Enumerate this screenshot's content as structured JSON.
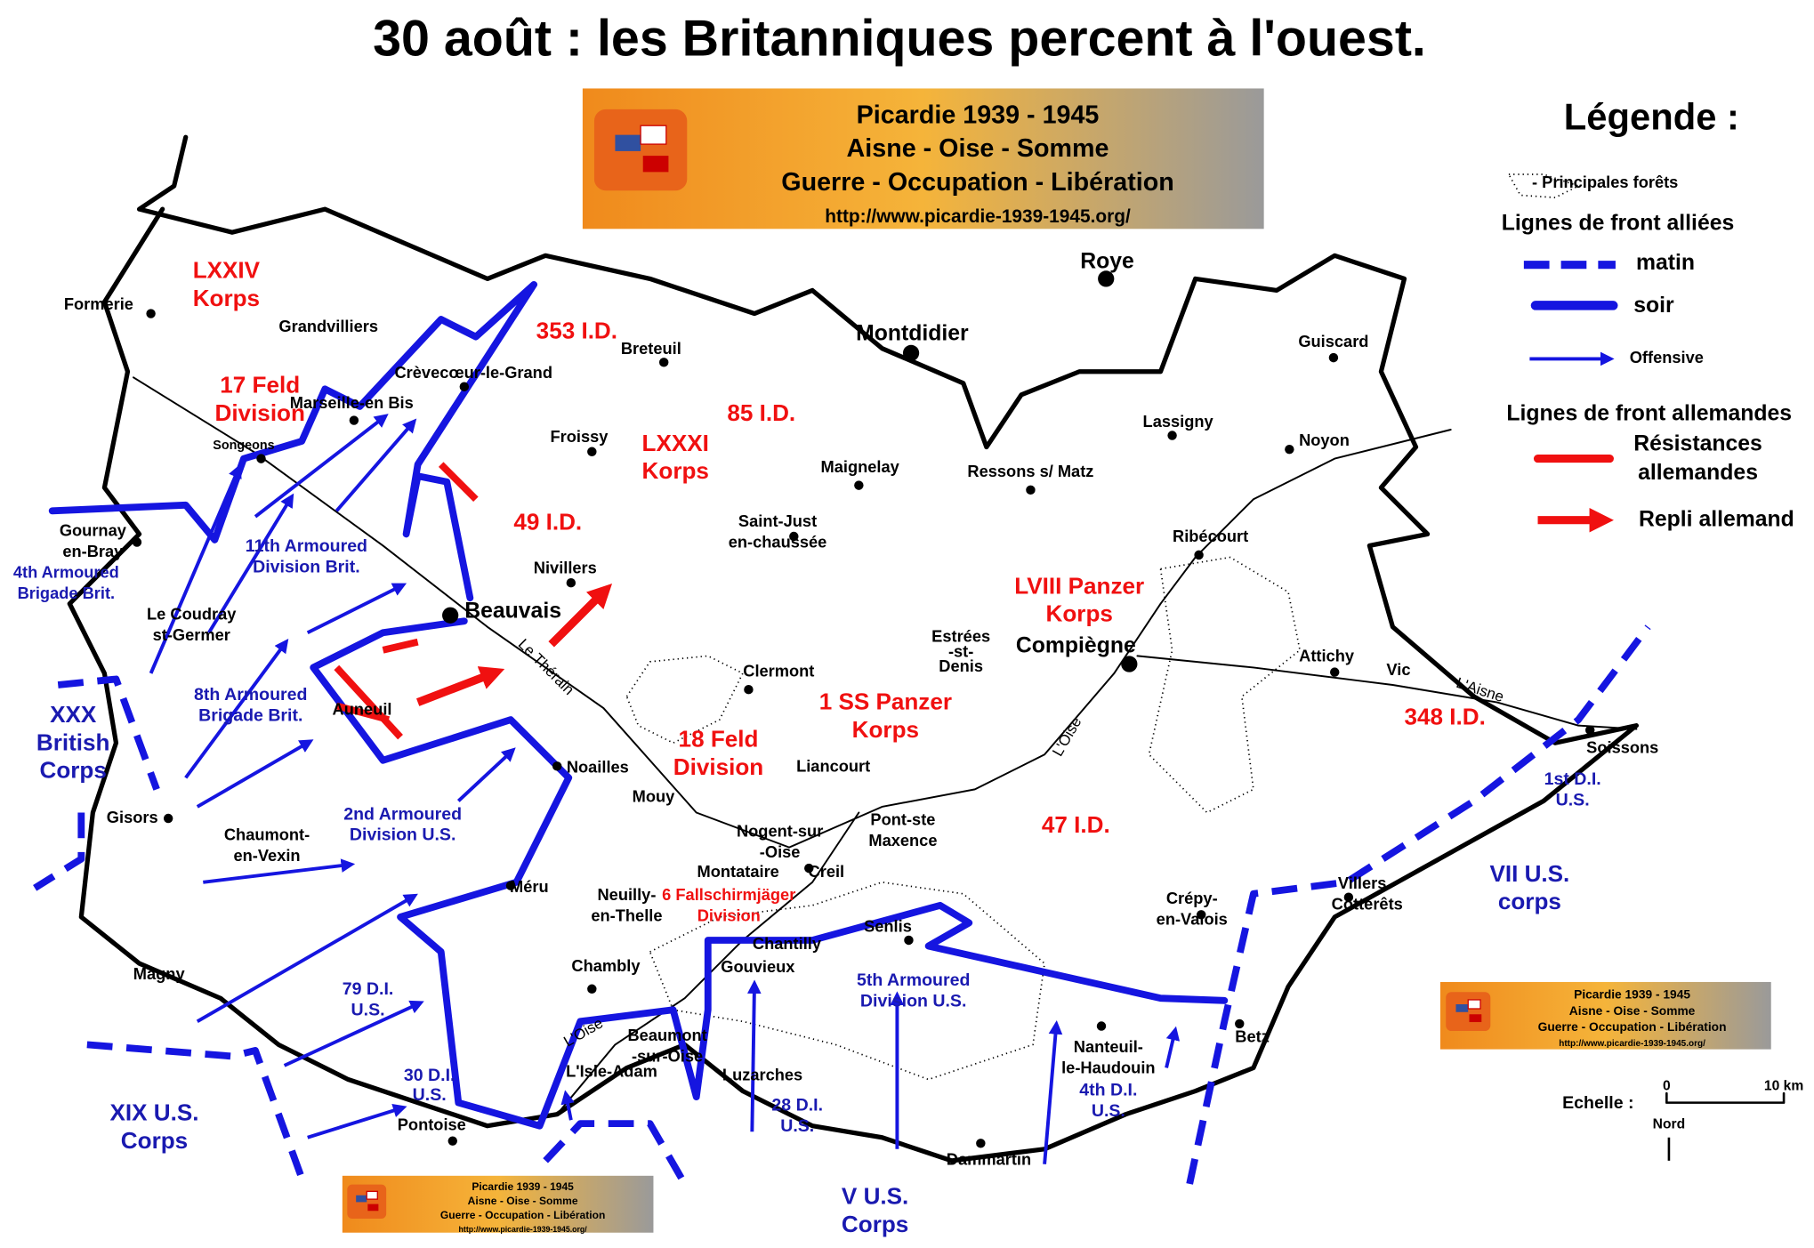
{
  "title": "30 août : les Britanniques percent à l'ouest.",
  "banner": [
    "Picardie  1939  -  1945",
    "Aisne  -  Oise  -  Somme",
    "Guerre  -  Occupation  -  Libération",
    "http://www.picardie-1939-1945.org/"
  ],
  "legend": {
    "title": "Légende :",
    "forests": "- Principales forêts",
    "allied_lines": "Lignes de front alliées",
    "morning": "matin",
    "evening": "soir",
    "offensive": "Offensive",
    "german_lines": "Lignes de front allemandes",
    "resistance": [
      "Résistances",
      "allemandes"
    ],
    "retreat": "Repli allemand"
  },
  "places": [
    [
      "Formerie"
    ],
    [
      "Grandvilliers"
    ],
    [
      "Crèvecœur-le-Grand"
    ],
    [
      "Marseille-en Bis"
    ],
    [
      "Songeons"
    ],
    [
      "Gournay",
      "en-Bray"
    ],
    [
      "Le Coudray",
      "st-Germer"
    ],
    [
      "Beauvais"
    ],
    [
      "Auneuil"
    ],
    [
      "Gisors"
    ],
    [
      "Chaumont-",
      "en-Vexin"
    ],
    [
      "Magny"
    ],
    [
      "Noailles"
    ],
    [
      "Méru"
    ],
    [
      "Chambly"
    ],
    [
      "Pontoise"
    ],
    [
      "L'Isle-Adam"
    ],
    [
      "Beaumont",
      "-sur-Oise"
    ],
    [
      "Luzarches"
    ],
    [
      "Neuilly-",
      "en-Thelle"
    ],
    [
      "Montataire"
    ],
    [
      "Nogent-sur",
      "-Oise"
    ],
    [
      "Creil"
    ],
    [
      "Chantilly"
    ],
    [
      "Gouvieux"
    ],
    [
      "Senlis"
    ],
    [
      "Pont-ste",
      "Maxence"
    ],
    [
      "Mouy"
    ],
    [
      "Liancourt"
    ],
    [
      "Clermont"
    ],
    [
      "Saint-Just",
      "en-chaussée"
    ],
    [
      "Nivillers"
    ],
    [
      "Froissy"
    ],
    [
      "Breteuil"
    ],
    [
      "Maignelay"
    ],
    [
      "Montdidier"
    ],
    [
      "Roye"
    ],
    [
      "Ressons s/ Matz"
    ],
    [
      "Lassigny"
    ],
    [
      "Guiscard"
    ],
    [
      "Noyon"
    ],
    [
      "Ribécourt"
    ],
    [
      "Compiègne"
    ],
    [
      "Estrées",
      "-st-",
      "Denis"
    ],
    [
      "Attichy"
    ],
    [
      "Vic"
    ],
    [
      "Soissons"
    ],
    [
      "Villers -",
      "Cotterêts"
    ],
    [
      "Crépy-",
      "en-Valois"
    ],
    [
      "Nanteuil-",
      "le-Haudouin"
    ],
    [
      "Betz"
    ],
    [
      "Dammartin"
    ]
  ],
  "rivers": [
    "Le Thérain",
    "L'Oise",
    "L'Aisne",
    "L'Oise"
  ],
  "german_units": [
    [
      "LXXIV",
      "Korps"
    ],
    [
      "353 I.D."
    ],
    [
      "17 Feld",
      "Division"
    ],
    [
      "85 I.D."
    ],
    [
      "LXXXI",
      "Korps"
    ],
    [
      "49 I.D."
    ],
    [
      "LVIII Panzer",
      "Korps"
    ],
    [
      "1 SS Panzer",
      "Korps"
    ],
    [
      "18 Feld",
      "Division"
    ],
    [
      "348 I.D."
    ],
    [
      "47 I.D."
    ],
    [
      "6 Fallschirmjäger",
      "Division"
    ]
  ],
  "allied_units": [
    [
      "4th Armoured",
      "Brigade Brit."
    ],
    [
      "11th Armoured",
      "Division Brit."
    ],
    [
      "XXX",
      "British",
      "Corps"
    ],
    [
      "8th Armoured",
      "Brigade Brit."
    ],
    [
      "2nd Armoured",
      "Division U.S."
    ],
    [
      "79 D.I.",
      "U.S."
    ],
    [
      "30 D.I.",
      "U.S."
    ],
    [
      "XIX U.S.",
      "Corps"
    ],
    [
      "28 D.I.",
      "U.S."
    ],
    [
      "5th Armoured",
      "Division U.S."
    ],
    [
      "4th D.I.",
      "U.S."
    ],
    [
      "V U.S.",
      "Corps"
    ],
    [
      "VII U.S.",
      "corps"
    ],
    [
      "1st D.I.",
      "U.S."
    ]
  ],
  "scale": {
    "label": "Echelle :",
    "start": "0",
    "end": "10 km",
    "north": "Nord"
  }
}
